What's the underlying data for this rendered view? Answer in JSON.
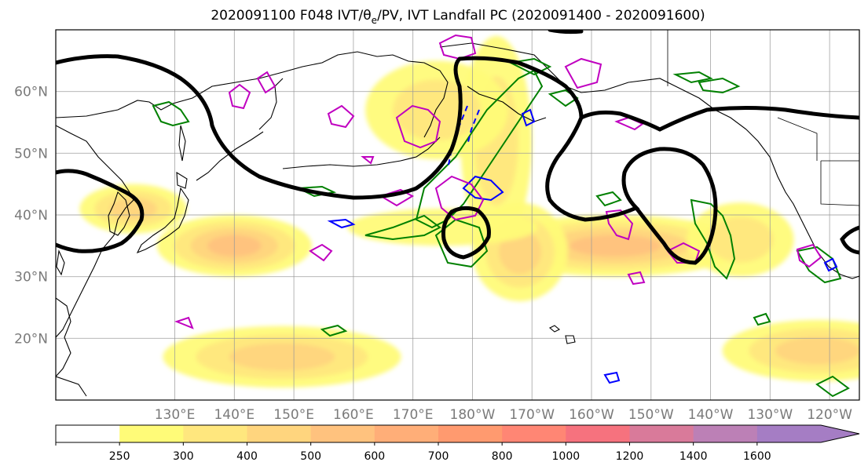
{
  "chart_data": {
    "type": "heatmap",
    "title": "2020091100 F048 IVT/θ",
    "title_sub": "e",
    "title_rest": "/PV, IVT Landfall PC (2020091400 - 2020091600)",
    "projection": "PlateCarree",
    "xlim": [
      110,
      245
    ],
    "ylim": [
      10,
      70
    ],
    "grid": true,
    "lat_ticks": [
      {
        "label": "60°N",
        "value": 60
      },
      {
        "label": "50°N",
        "value": 50
      },
      {
        "label": "40°N",
        "value": 40
      },
      {
        "label": "30°N",
        "value": 30
      },
      {
        "label": "20°N",
        "value": 20
      }
    ],
    "lon_ticks": [
      {
        "label": "130°E",
        "value": 130
      },
      {
        "label": "140°E",
        "value": 140
      },
      {
        "label": "150°E",
        "value": 150
      },
      {
        "label": "160°E",
        "value": 160
      },
      {
        "label": "170°E",
        "value": 170
      },
      {
        "label": "180°W",
        "value": 180
      },
      {
        "label": "170°W",
        "value": 190
      },
      {
        "label": "160°W",
        "value": 200
      },
      {
        "label": "150°W",
        "value": 210
      },
      {
        "label": "140°W",
        "value": 220
      },
      {
        "label": "130°W",
        "value": 230
      },
      {
        "label": "120°W",
        "value": 240
      }
    ],
    "colorbar": {
      "levels": [
        250,
        300,
        400,
        500,
        600,
        700,
        800,
        1000,
        1200,
        1400,
        1600
      ],
      "labels": [
        "250",
        "300",
        "400",
        "500",
        "600",
        "700",
        "800",
        "1000",
        "1200",
        "1400",
        "1600"
      ],
      "colors": [
        "#ffffff",
        "#fffb78",
        "#ffe77e",
        "#ffd57e",
        "#ffc27e",
        "#ffae78",
        "#ff9a6f",
        "#ff8674",
        "#f6727e",
        "#d97a9a",
        "#bc80b6",
        "#a57dc4"
      ],
      "extend": "max"
    },
    "ivt_blobs": [
      {
        "name": "japan-plume",
        "lon": 140,
        "lat": 35,
        "rx": 13,
        "ry": 5,
        "level": 4
      },
      {
        "name": "korea-plume",
        "lon": 123,
        "lat": 41,
        "rx": 9,
        "ry": 4,
        "level": 3
      },
      {
        "name": "nw-pacific-south",
        "lon": 148,
        "lat": 17,
        "rx": 20,
        "ry": 5,
        "level": 3
      },
      {
        "name": "bering-jet",
        "lon": 184,
        "lat": 52,
        "rx": 6,
        "ry": 17,
        "level": 2
      },
      {
        "name": "kamchatka-swirl",
        "lon": 174,
        "lat": 57,
        "rx": 12,
        "ry": 8,
        "level": 2
      },
      {
        "name": "central-plume",
        "lon": 204,
        "lat": 35,
        "rx": 22,
        "ry": 5,
        "level": 4
      },
      {
        "name": "low-plume",
        "lon": 188,
        "lat": 34,
        "rx": 8,
        "ry": 8,
        "level": 3
      },
      {
        "name": "ne-pacific-plume",
        "lon": 225,
        "lat": 36,
        "rx": 9,
        "ry": 6,
        "level": 2
      },
      {
        "name": "subtropical-east",
        "lon": 238,
        "lat": 18,
        "rx": 16,
        "ry": 5,
        "level": 3
      },
      {
        "name": "dateline-band",
        "lon": 175,
        "lat": 38,
        "rx": 16,
        "ry": 3,
        "level": 1
      }
    ],
    "theta_e_contour_color": "#000000",
    "pv_contour_color": "#c000c0",
    "landfall_pc_colors": [
      "#008000",
      "#0000ff"
    ]
  }
}
